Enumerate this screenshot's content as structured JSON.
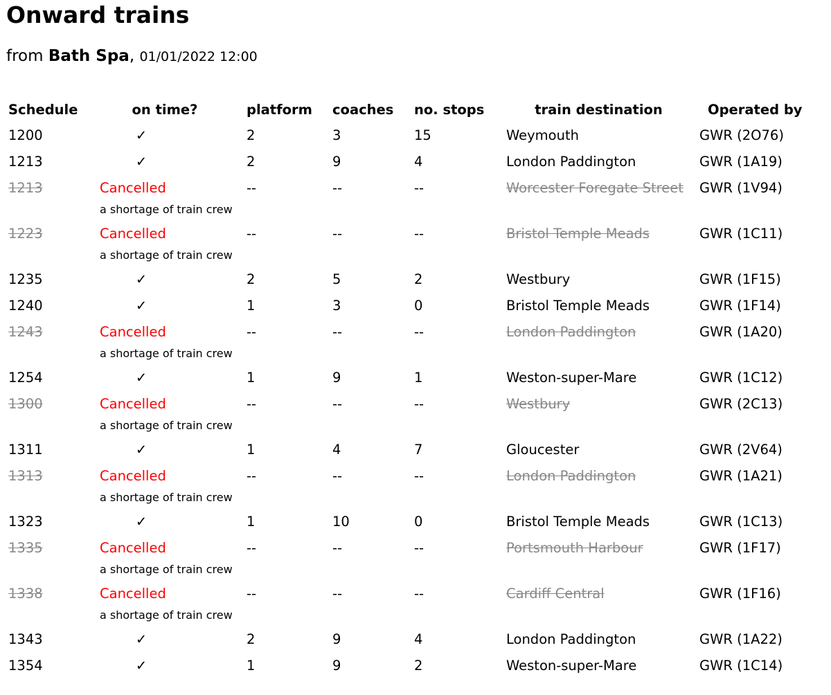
{
  "title": "Onward trains",
  "subtitle": {
    "prefix": "from",
    "station": "Bath Spa",
    "separator": ",",
    "datetime": "01/01/2022 12:00"
  },
  "columns": [
    "Schedule",
    "on time?",
    "platform",
    "coaches",
    "no. stops",
    "train destination",
    "Operated by"
  ],
  "rows": [
    {
      "schedule": "1200",
      "status": "✓",
      "platform": "2",
      "coaches": "3",
      "stops": "15",
      "destination": "Weymouth",
      "operator": "GWR (2O76)",
      "cancelled": false
    },
    {
      "schedule": "1213",
      "status": "✓",
      "platform": "2",
      "coaches": "9",
      "stops": "4",
      "destination": "London Paddington",
      "operator": "GWR (1A19)",
      "cancelled": false
    },
    {
      "schedule": "1213",
      "status": "Cancelled",
      "platform": "--",
      "coaches": "--",
      "stops": "--",
      "destination": "Worcester Foregate Street",
      "operator": "GWR (1V94)",
      "cancelled": true,
      "reason": "a shortage of train crew"
    },
    {
      "schedule": "1223",
      "status": "Cancelled",
      "platform": "--",
      "coaches": "--",
      "stops": "--",
      "destination": "Bristol Temple Meads",
      "operator": "GWR (1C11)",
      "cancelled": true,
      "reason": "a shortage of train crew"
    },
    {
      "schedule": "1235",
      "status": "✓",
      "platform": "2",
      "coaches": "5",
      "stops": "2",
      "destination": "Westbury",
      "operator": "GWR (1F15)",
      "cancelled": false
    },
    {
      "schedule": "1240",
      "status": "✓",
      "platform": "1",
      "coaches": "3",
      "stops": "0",
      "destination": "Bristol Temple Meads",
      "operator": "GWR (1F14)",
      "cancelled": false
    },
    {
      "schedule": "1243",
      "status": "Cancelled",
      "platform": "--",
      "coaches": "--",
      "stops": "--",
      "destination": "London Paddington",
      "operator": "GWR (1A20)",
      "cancelled": true,
      "reason": "a shortage of train crew"
    },
    {
      "schedule": "1254",
      "status": "✓",
      "platform": "1",
      "coaches": "9",
      "stops": "1",
      "destination": "Weston-super-Mare",
      "operator": "GWR (1C12)",
      "cancelled": false
    },
    {
      "schedule": "1300",
      "status": "Cancelled",
      "platform": "--",
      "coaches": "--",
      "stops": "--",
      "destination": "Westbury",
      "operator": "GWR (2C13)",
      "cancelled": true,
      "reason": "a shortage of train crew"
    },
    {
      "schedule": "1311",
      "status": "✓",
      "platform": "1",
      "coaches": "4",
      "stops": "7",
      "destination": "Gloucester",
      "operator": "GWR (2V64)",
      "cancelled": false
    },
    {
      "schedule": "1313",
      "status": "Cancelled",
      "platform": "--",
      "coaches": "--",
      "stops": "--",
      "destination": "London Paddington",
      "operator": "GWR (1A21)",
      "cancelled": true,
      "reason": "a shortage of train crew"
    },
    {
      "schedule": "1323",
      "status": "✓",
      "platform": "1",
      "coaches": "10",
      "stops": "0",
      "destination": "Bristol Temple Meads",
      "operator": "GWR (1C13)",
      "cancelled": false
    },
    {
      "schedule": "1335",
      "status": "Cancelled",
      "platform": "--",
      "coaches": "--",
      "stops": "--",
      "destination": "Portsmouth Harbour",
      "operator": "GWR (1F17)",
      "cancelled": true,
      "reason": "a shortage of train crew"
    },
    {
      "schedule": "1338",
      "status": "Cancelled",
      "platform": "--",
      "coaches": "--",
      "stops": "--",
      "destination": "Cardiff Central",
      "operator": "GWR (1F16)",
      "cancelled": true,
      "reason": "a shortage of train crew"
    },
    {
      "schedule": "1343",
      "status": "✓",
      "platform": "2",
      "coaches": "9",
      "stops": "4",
      "destination": "London Paddington",
      "operator": "GWR (1A22)",
      "cancelled": false
    },
    {
      "schedule": "1354",
      "status": "✓",
      "platform": "1",
      "coaches": "9",
      "stops": "2",
      "destination": "Weston-super-Mare",
      "operator": "GWR (1C14)",
      "cancelled": false
    }
  ],
  "colors": {
    "cancelled": "#ff0000",
    "struck": "#888888"
  }
}
